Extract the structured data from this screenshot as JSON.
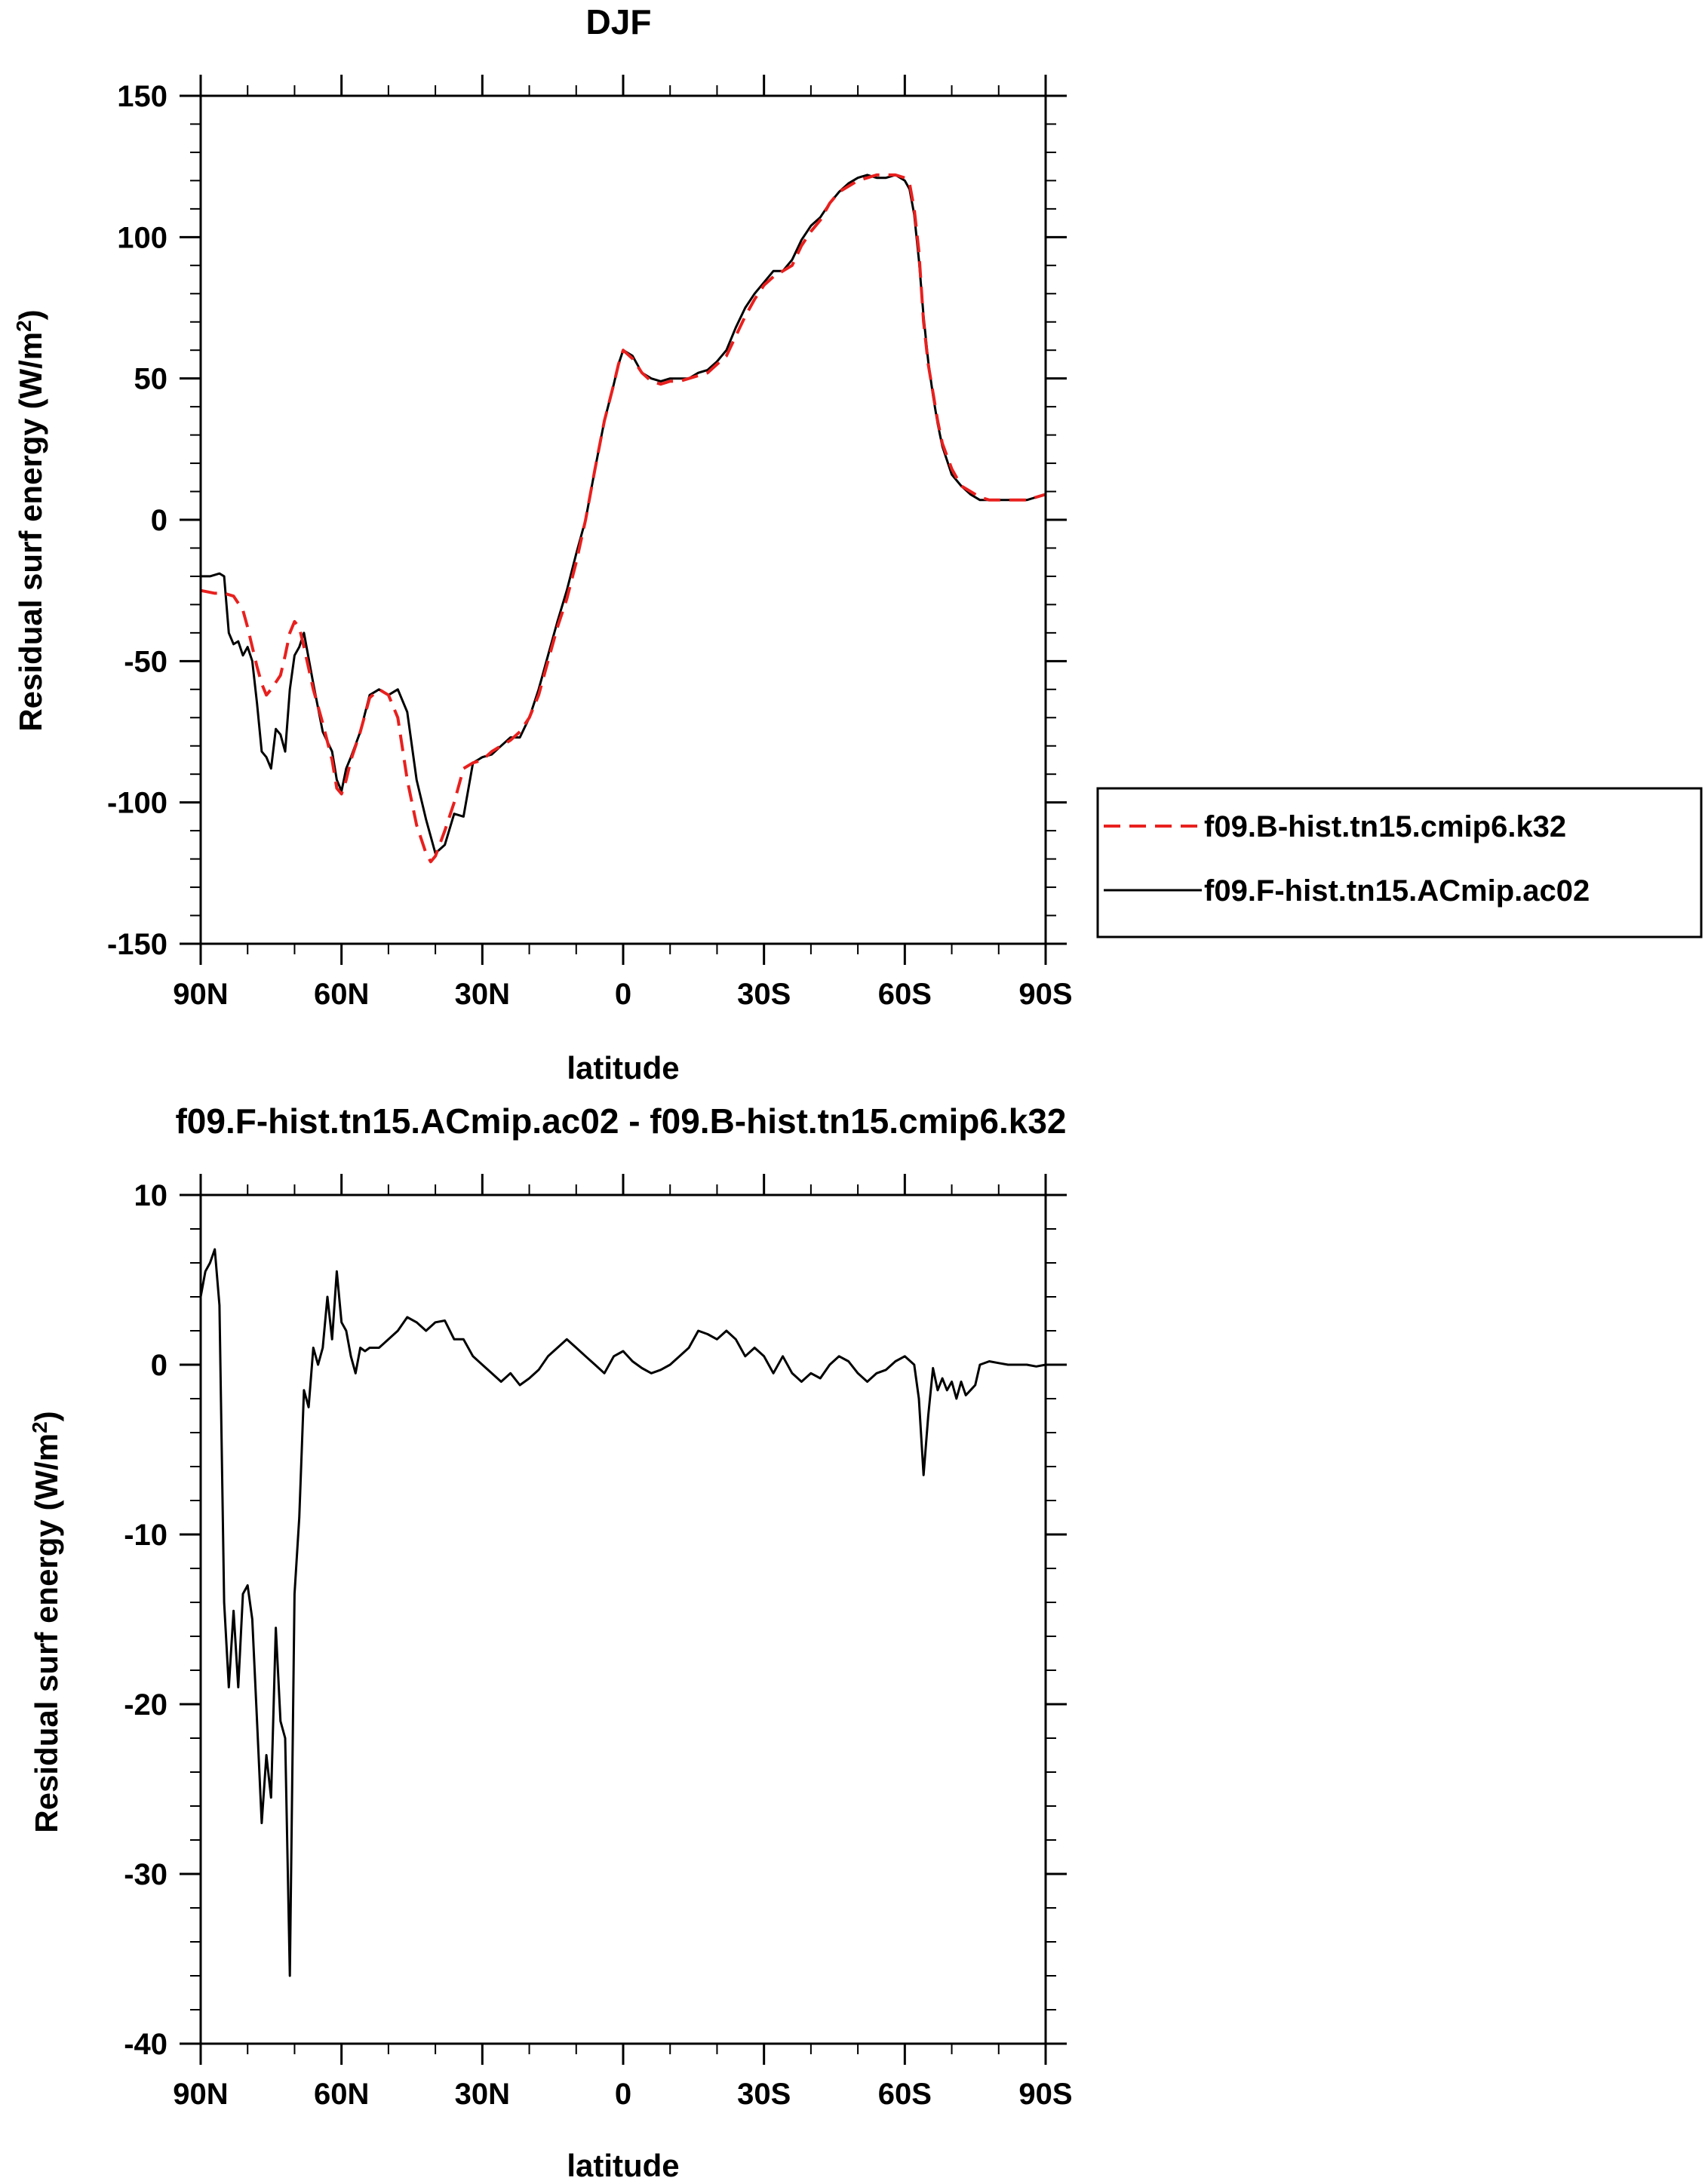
{
  "charts": [
    {
      "title": "DJF",
      "ylabel": "Residual surf energy (W/m",
      "ylabel_sup": "2",
      "ylabel_end": ")",
      "xlabel": "latitude"
    },
    {
      "title": "f09.F-hist.tn15.ACmip.ac02 - f09.B-hist.tn15.cmip6.k32",
      "ylabel": "Residual surf energy (W/m",
      "ylabel_sup": "2",
      "ylabel_end": ")",
      "xlabel": "latitude"
    }
  ],
  "legend": {
    "items": [
      {
        "label": "f09.B-hist.tn15.cmip6.k32",
        "color": "#e8201e",
        "dash": "dashed"
      },
      {
        "label": "f09.F-hist.tn15.ACmip.ac02",
        "color": "#000000",
        "dash": "solid"
      }
    ]
  },
  "chart_data": [
    {
      "type": "line",
      "title": "DJF",
      "xlabel": "latitude",
      "ylabel": "Residual surf energy (W/m2)",
      "xlim": [
        90,
        -90
      ],
      "ylim": [
        -150,
        150
      ],
      "x_ticks": [
        90,
        60,
        30,
        0,
        -30,
        -60,
        -90
      ],
      "x_tick_labels": [
        "90N",
        "60N",
        "30N",
        "0",
        "30S",
        "60S",
        "90S"
      ],
      "y_ticks": [
        -150,
        -100,
        -50,
        0,
        50,
        100,
        150
      ],
      "y_tick_labels": [
        "-150",
        "-100",
        "-50",
        "0",
        "50",
        "100",
        "150"
      ],
      "legend_position": "right",
      "series": [
        {
          "name": "f09.B-hist.tn15.cmip6.k32",
          "color": "#e8201e",
          "dash": "dashed",
          "x": [
            90,
            87,
            85,
            83,
            81,
            80,
            79,
            78,
            77,
            76,
            75,
            73,
            72,
            71,
            70,
            69,
            68,
            66,
            64,
            62,
            61,
            60,
            59,
            58,
            56,
            54,
            52,
            50,
            48,
            46,
            44,
            42,
            41,
            40,
            38,
            36,
            34,
            32,
            30,
            28,
            26,
            24,
            22,
            20,
            18,
            16,
            14,
            12,
            10,
            8,
            6,
            4,
            2,
            1,
            0,
            -2,
            -4,
            -6,
            -8,
            -10,
            -12,
            -14,
            -16,
            -18,
            -20,
            -22,
            -24,
            -26,
            -28,
            -30,
            -32,
            -34,
            -36,
            -38,
            -40,
            -42,
            -44,
            -46,
            -48,
            -50,
            -52,
            -54,
            -56,
            -58,
            -60,
            -61,
            -62,
            -63,
            -64,
            -65,
            -66,
            -67,
            -68,
            -70,
            -72,
            -74,
            -76,
            -78,
            -80,
            -82,
            -84,
            -86,
            -88,
            -90
          ],
          "y": [
            -25,
            -26,
            -26,
            -27,
            -32,
            -38,
            -45,
            -52,
            -58,
            -62,
            -60,
            -55,
            -48,
            -40,
            -36,
            -38,
            -45,
            -60,
            -72,
            -85,
            -95,
            -97,
            -92,
            -85,
            -75,
            -63,
            -60,
            -62,
            -70,
            -92,
            -108,
            -118,
            -121,
            -119,
            -110,
            -100,
            -88,
            -86,
            -85,
            -82,
            -80,
            -78,
            -75,
            -70,
            -62,
            -50,
            -38,
            -28,
            -15,
            0,
            18,
            35,
            48,
            55,
            60,
            57,
            52,
            49,
            48,
            49,
            49,
            50,
            51,
            52,
            55,
            58,
            65,
            72,
            78,
            83,
            86,
            88,
            90,
            97,
            102,
            106,
            112,
            116,
            118,
            120,
            121,
            122,
            122,
            122,
            121,
            119,
            110,
            95,
            70,
            55,
            45,
            35,
            27,
            18,
            12,
            10,
            8,
            7,
            7,
            7,
            7,
            7,
            8,
            9
          ]
        },
        {
          "name": "f09.F-hist.tn15.ACmip.ac02",
          "color": "#000000",
          "dash": "solid",
          "x": [
            90,
            88,
            86,
            85,
            84,
            83,
            82,
            81,
            80,
            79,
            78,
            77,
            76,
            75,
            74,
            73,
            72,
            71,
            70,
            69,
            68,
            66,
            64,
            62,
            61,
            60,
            59,
            58,
            56,
            54,
            52,
            50,
            48,
            46,
            44,
            42,
            41,
            40,
            38,
            36,
            34,
            32,
            30,
            28,
            26,
            24,
            22,
            20,
            18,
            16,
            14,
            12,
            10,
            8,
            6,
            4,
            2,
            1,
            0,
            -2,
            -4,
            -6,
            -8,
            -10,
            -12,
            -14,
            -16,
            -18,
            -20,
            -22,
            -24,
            -26,
            -28,
            -30,
            -32,
            -34,
            -36,
            -38,
            -40,
            -42,
            -44,
            -46,
            -48,
            -50,
            -52,
            -54,
            -56,
            -58,
            -60,
            -61,
            -62,
            -63,
            -64,
            -65,
            -66,
            -67,
            -68,
            -70,
            -72,
            -74,
            -76,
            -78,
            -80,
            -82,
            -84,
            -86,
            -88,
            -90
          ],
          "y": [
            -20,
            -20,
            -19,
            -20,
            -40,
            -44,
            -43,
            -48,
            -45,
            -50,
            -65,
            -82,
            -84,
            -88,
            -74,
            -76,
            -82,
            -60,
            -48,
            -45,
            -40,
            -58,
            -75,
            -82,
            -92,
            -96,
            -88,
            -84,
            -75,
            -62,
            -60,
            -62,
            -60,
            -68,
            -92,
            -106,
            -112,
            -118,
            -115,
            -104,
            -105,
            -86,
            -84,
            -83,
            -80,
            -77,
            -77,
            -70,
            -60,
            -48,
            -36,
            -25,
            -12,
            0,
            18,
            35,
            48,
            55,
            60,
            58,
            52,
            50,
            49,
            50,
            50,
            50,
            52,
            53,
            56,
            60,
            68,
            75,
            80,
            84,
            88,
            88,
            92,
            99,
            104,
            107,
            112,
            116,
            119,
            121,
            122,
            121,
            121,
            122,
            120,
            117,
            108,
            92,
            72,
            56,
            44,
            34,
            26,
            16,
            12,
            9,
            7,
            7,
            7,
            7,
            7,
            7,
            8,
            9
          ]
        }
      ]
    },
    {
      "type": "line",
      "title": "f09.F-hist.tn15.ACmip.ac02 - f09.B-hist.tn15.cmip6.k32",
      "xlabel": "latitude",
      "ylabel": "Residual surf energy (W/m2)",
      "xlim": [
        90,
        -90
      ],
      "ylim": [
        -40,
        10
      ],
      "x_ticks": [
        90,
        60,
        30,
        0,
        -30,
        -60,
        -90
      ],
      "x_tick_labels": [
        "90N",
        "60N",
        "30N",
        "0",
        "30S",
        "60S",
        "90S"
      ],
      "y_ticks": [
        -40,
        -30,
        -20,
        -10,
        0,
        10
      ],
      "y_tick_labels": [
        "-40",
        "-30",
        "-20",
        "-10",
        "0",
        "10"
      ],
      "series": [
        {
          "color": "#000000",
          "dash": "solid",
          "x": [
            90,
            89,
            88,
            87,
            86,
            85,
            84,
            83,
            82,
            81,
            80,
            79,
            78,
            77,
            76,
            75,
            74,
            73,
            72,
            71,
            70,
            69,
            68,
            67,
            66,
            65,
            64,
            63,
            62,
            61,
            60,
            59,
            58,
            57,
            56,
            55,
            54,
            52,
            50,
            48,
            46,
            44,
            42,
            40,
            38,
            36,
            34,
            32,
            30,
            28,
            26,
            24,
            22,
            20,
            18,
            16,
            14,
            12,
            10,
            8,
            6,
            4,
            2,
            0,
            -2,
            -4,
            -6,
            -8,
            -10,
            -12,
            -14,
            -16,
            -18,
            -20,
            -22,
            -24,
            -26,
            -28,
            -30,
            -32,
            -34,
            -36,
            -38,
            -40,
            -42,
            -44,
            -46,
            -48,
            -50,
            -52,
            -54,
            -56,
            -58,
            -60,
            -62,
            -63,
            -64,
            -65,
            -66,
            -67,
            -68,
            -69,
            -70,
            -71,
            -72,
            -73,
            -74,
            -75,
            -76,
            -78,
            -80,
            -82,
            -84,
            -86,
            -88,
            -90
          ],
          "y": [
            4,
            5.5,
            6,
            6.8,
            3.5,
            -14,
            -19,
            -14.5,
            -19,
            -13.5,
            -13,
            -15,
            -21,
            -27,
            -23,
            -25.5,
            -15.5,
            -21,
            -22,
            -36,
            -13.5,
            -9,
            -1.5,
            -2.5,
            1,
            0,
            1,
            4,
            1.5,
            5.5,
            2.5,
            2,
            0.5,
            -0.5,
            1,
            0.8,
            1,
            1,
            1.5,
            2,
            2.8,
            2.5,
            2,
            2.5,
            2.6,
            1.5,
            1.5,
            0.5,
            0,
            -0.5,
            -1,
            -0.5,
            -1.2,
            -0.8,
            -0.3,
            0.5,
            1,
            1.5,
            1,
            0.5,
            0,
            -0.5,
            0.5,
            0.8,
            0.2,
            -0.2,
            -0.5,
            -0.3,
            0,
            0.5,
            1,
            2,
            1.8,
            1.5,
            2,
            1.5,
            0.5,
            1,
            0.5,
            -0.5,
            0.5,
            -0.5,
            -1,
            -0.5,
            -0.8,
            0,
            0.5,
            0.2,
            -0.5,
            -1,
            -0.5,
            -0.3,
            0.2,
            0.5,
            0,
            -2,
            -6.5,
            -3,
            -0.2,
            -1.5,
            -0.8,
            -1.5,
            -1,
            -2,
            -1,
            -1.8,
            -1.5,
            -1.2,
            0,
            0.2,
            0.1,
            0,
            0,
            0,
            -0.1,
            0
          ]
        }
      ]
    }
  ]
}
